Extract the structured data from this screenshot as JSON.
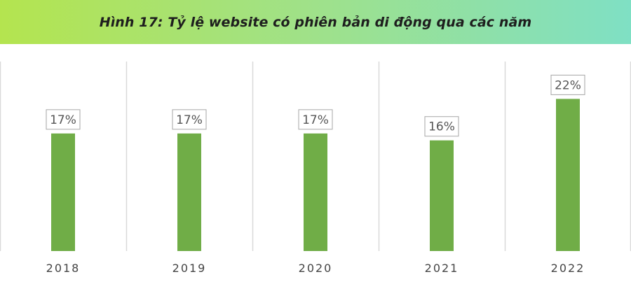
{
  "chart_data": {
    "type": "bar",
    "title": "Hình 17: Tỷ lệ website có phiên bản di động qua các năm",
    "categories": [
      "2018",
      "2019",
      "2020",
      "2021",
      "2022"
    ],
    "values": [
      17,
      17,
      17,
      16,
      22
    ],
    "value_labels": [
      "17%",
      "17%",
      "17%",
      "16%",
      "22%"
    ],
    "unit": "%",
    "ylim": [
      0,
      27.5
    ],
    "grid": "vertical category separators",
    "legend": "none",
    "colors": {
      "bar": "#70ad47",
      "banner_start": "#b4e44f",
      "banner_end": "#7fe0c4"
    }
  }
}
